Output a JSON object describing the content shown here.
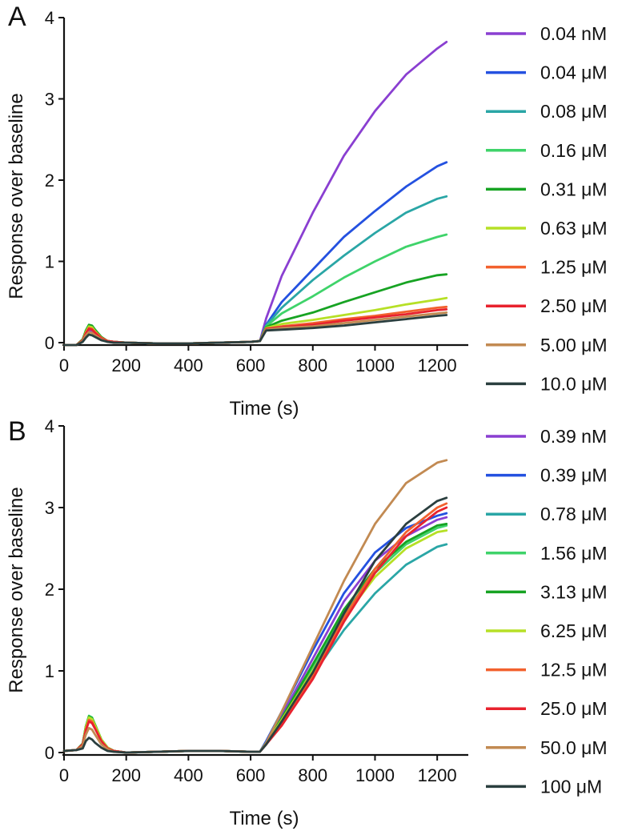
{
  "figure": {
    "panels": [
      {
        "label": "A",
        "xlabel": "Time (s)",
        "ylabel": "Response over baseline",
        "xticks": [
          "0",
          "200",
          "400",
          "600",
          "800",
          "1000",
          "1200"
        ],
        "yticks": [
          "0",
          "1",
          "2",
          "3",
          "4"
        ]
      },
      {
        "label": "B",
        "xlabel": "Time (s)",
        "ylabel": "Response over baseline",
        "xticks": [
          "0",
          "200",
          "400",
          "600",
          "800",
          "1000",
          "1200"
        ],
        "yticks": [
          "0",
          "1",
          "2",
          "3",
          "4"
        ]
      }
    ]
  },
  "chart_data": [
    {
      "type": "line",
      "panel": "A",
      "title": "",
      "xlabel": "Time (s)",
      "ylabel": "Response over baseline",
      "xlim": [
        0,
        1300
      ],
      "ylim": [
        0,
        4
      ],
      "xticks": [
        0,
        200,
        400,
        600,
        800,
        1000,
        1200
      ],
      "yticks": [
        0,
        1,
        2,
        3,
        4
      ],
      "grid": false,
      "legend_position": "right",
      "x": [
        0,
        40,
        60,
        70,
        80,
        90,
        100,
        120,
        140,
        160,
        200,
        300,
        400,
        500,
        600,
        630,
        650,
        700,
        800,
        900,
        1000,
        1100,
        1200,
        1230
      ],
      "series": [
        {
          "name": "0.04 nM",
          "color": "#8a3fd1",
          "values": [
            -0.03,
            -0.03,
            0.02,
            0.1,
            0.15,
            0.14,
            0.11,
            0.05,
            0.02,
            0.01,
            0.0,
            -0.01,
            -0.01,
            0.0,
            0.01,
            0.02,
            0.3,
            0.82,
            1.6,
            2.3,
            2.85,
            3.3,
            3.62,
            3.7
          ]
        },
        {
          "name": "0.04 μM",
          "color": "#2451e0",
          "values": [
            -0.03,
            -0.03,
            0.03,
            0.12,
            0.18,
            0.17,
            0.13,
            0.06,
            0.02,
            0.01,
            0.0,
            -0.01,
            -0.01,
            0.0,
            0.01,
            0.02,
            0.22,
            0.5,
            0.9,
            1.3,
            1.62,
            1.92,
            2.17,
            2.22
          ]
        },
        {
          "name": "0.08 μM",
          "color": "#2aa6a6",
          "values": [
            -0.03,
            -0.03,
            0.03,
            0.13,
            0.19,
            0.18,
            0.14,
            0.06,
            0.02,
            0.01,
            0.0,
            -0.01,
            -0.01,
            0.0,
            0.01,
            0.02,
            0.21,
            0.43,
            0.77,
            1.07,
            1.35,
            1.6,
            1.77,
            1.8
          ]
        },
        {
          "name": "0.16 μM",
          "color": "#3fd36a",
          "values": [
            -0.03,
            -0.03,
            0.04,
            0.14,
            0.21,
            0.2,
            0.15,
            0.07,
            0.02,
            0.01,
            0.0,
            -0.01,
            -0.01,
            0.0,
            0.01,
            0.02,
            0.2,
            0.36,
            0.57,
            0.8,
            1.0,
            1.18,
            1.3,
            1.33
          ]
        },
        {
          "name": "0.31 μM",
          "color": "#17a323",
          "values": [
            -0.03,
            -0.03,
            0.04,
            0.15,
            0.22,
            0.21,
            0.16,
            0.07,
            0.02,
            0.01,
            0.0,
            -0.01,
            -0.01,
            0.0,
            0.01,
            0.02,
            0.19,
            0.27,
            0.37,
            0.5,
            0.62,
            0.74,
            0.83,
            0.84
          ]
        },
        {
          "name": "0.63 μM",
          "color": "#b6e026",
          "values": [
            -0.03,
            -0.03,
            0.03,
            0.13,
            0.2,
            0.19,
            0.14,
            0.06,
            0.02,
            0.01,
            0.0,
            -0.01,
            -0.01,
            0.0,
            0.01,
            0.02,
            0.18,
            0.23,
            0.28,
            0.34,
            0.4,
            0.47,
            0.53,
            0.55
          ]
        },
        {
          "name": "1.25 μM",
          "color": "#f2612e",
          "values": [
            -0.03,
            -0.03,
            0.03,
            0.12,
            0.18,
            0.17,
            0.13,
            0.06,
            0.02,
            0.01,
            0.0,
            -0.01,
            -0.01,
            0.0,
            0.01,
            0.02,
            0.17,
            0.2,
            0.24,
            0.29,
            0.33,
            0.38,
            0.43,
            0.44
          ]
        },
        {
          "name": "2.50 μM",
          "color": "#e8222e",
          "values": [
            -0.03,
            -0.03,
            0.03,
            0.11,
            0.17,
            0.16,
            0.12,
            0.05,
            0.02,
            0.01,
            0.0,
            -0.01,
            -0.01,
            0.0,
            0.01,
            0.02,
            0.17,
            0.19,
            0.22,
            0.27,
            0.31,
            0.35,
            0.4,
            0.41
          ]
        },
        {
          "name": "5.00 μM",
          "color": "#c28a52",
          "values": [
            -0.03,
            -0.03,
            0.02,
            0.09,
            0.13,
            0.12,
            0.09,
            0.04,
            0.01,
            0.0,
            0.0,
            -0.01,
            -0.01,
            0.0,
            0.01,
            0.02,
            0.16,
            0.18,
            0.2,
            0.24,
            0.28,
            0.32,
            0.36,
            0.37
          ]
        },
        {
          "name": "10.0 μM",
          "color": "#2b3f3f",
          "values": [
            -0.03,
            -0.03,
            0.01,
            0.06,
            0.1,
            0.09,
            0.07,
            0.03,
            0.01,
            0.0,
            0.0,
            -0.01,
            -0.01,
            0.0,
            0.01,
            0.02,
            0.15,
            0.16,
            0.18,
            0.21,
            0.25,
            0.29,
            0.33,
            0.34
          ]
        }
      ]
    },
    {
      "type": "line",
      "panel": "B",
      "title": "",
      "xlabel": "Time (s)",
      "ylabel": "Response over baseline",
      "xlim": [
        0,
        1300
      ],
      "ylim": [
        0,
        4
      ],
      "xticks": [
        0,
        200,
        400,
        600,
        800,
        1000,
        1200
      ],
      "yticks": [
        0,
        1,
        2,
        3,
        4
      ],
      "grid": false,
      "legend_position": "right",
      "x": [
        0,
        40,
        60,
        70,
        80,
        90,
        100,
        120,
        140,
        160,
        200,
        300,
        400,
        500,
        600,
        630,
        650,
        700,
        800,
        900,
        1000,
        1100,
        1200,
        1230
      ],
      "series": [
        {
          "name": "0.39 nM",
          "color": "#8a3fd1",
          "values": [
            0.02,
            0.03,
            0.1,
            0.3,
            0.42,
            0.4,
            0.32,
            0.15,
            0.06,
            0.02,
            0.0,
            0.01,
            0.02,
            0.02,
            0.01,
            0.01,
            0.12,
            0.45,
            1.15,
            1.85,
            2.35,
            2.65,
            2.85,
            2.88
          ]
        },
        {
          "name": "0.39 μM",
          "color": "#2451e0",
          "values": [
            0.02,
            0.03,
            0.1,
            0.3,
            0.42,
            0.4,
            0.32,
            0.15,
            0.06,
            0.02,
            0.0,
            0.01,
            0.02,
            0.02,
            0.01,
            0.01,
            0.14,
            0.5,
            1.25,
            1.95,
            2.45,
            2.75,
            2.9,
            2.93
          ]
        },
        {
          "name": "0.78 μM",
          "color": "#2aa6a6",
          "values": [
            0.02,
            0.03,
            0.1,
            0.3,
            0.43,
            0.41,
            0.33,
            0.16,
            0.06,
            0.02,
            0.0,
            0.01,
            0.02,
            0.02,
            0.01,
            0.01,
            0.1,
            0.38,
            0.95,
            1.5,
            1.95,
            2.3,
            2.52,
            2.55
          ]
        },
        {
          "name": "1.56 μM",
          "color": "#3fd36a",
          "values": [
            0.02,
            0.03,
            0.11,
            0.32,
            0.45,
            0.43,
            0.34,
            0.16,
            0.06,
            0.02,
            0.0,
            0.01,
            0.02,
            0.02,
            0.01,
            0.01,
            0.12,
            0.42,
            1.05,
            1.7,
            2.2,
            2.55,
            2.75,
            2.78
          ]
        },
        {
          "name": "3.13 μM",
          "color": "#17a323",
          "values": [
            0.02,
            0.03,
            0.11,
            0.32,
            0.44,
            0.42,
            0.34,
            0.16,
            0.06,
            0.02,
            0.0,
            0.01,
            0.02,
            0.02,
            0.01,
            0.01,
            0.12,
            0.42,
            1.08,
            1.75,
            2.25,
            2.58,
            2.78,
            2.8
          ]
        },
        {
          "name": "6.25 μM",
          "color": "#b6e026",
          "values": [
            0.02,
            0.03,
            0.1,
            0.31,
            0.43,
            0.41,
            0.33,
            0.16,
            0.06,
            0.02,
            0.0,
            0.01,
            0.02,
            0.02,
            0.01,
            0.01,
            0.11,
            0.4,
            1.0,
            1.65,
            2.15,
            2.5,
            2.7,
            2.72
          ]
        },
        {
          "name": "12.5 μM",
          "color": "#f2612e",
          "values": [
            0.02,
            0.03,
            0.1,
            0.28,
            0.4,
            0.38,
            0.3,
            0.14,
            0.05,
            0.02,
            0.0,
            0.01,
            0.02,
            0.02,
            0.01,
            0.01,
            0.1,
            0.35,
            0.95,
            1.65,
            2.25,
            2.7,
            3.0,
            3.05
          ]
        },
        {
          "name": "25.0 μM",
          "color": "#e8222e",
          "values": [
            0.02,
            0.03,
            0.1,
            0.27,
            0.38,
            0.36,
            0.29,
            0.14,
            0.05,
            0.02,
            0.0,
            0.01,
            0.02,
            0.02,
            0.01,
            0.01,
            0.1,
            0.33,
            0.9,
            1.6,
            2.2,
            2.65,
            2.95,
            3.0
          ]
        },
        {
          "name": "50.0 μM",
          "color": "#c28a52",
          "values": [
            0.02,
            0.03,
            0.08,
            0.22,
            0.3,
            0.28,
            0.22,
            0.1,
            0.04,
            0.01,
            0.0,
            0.01,
            0.02,
            0.02,
            0.01,
            0.01,
            0.12,
            0.5,
            1.3,
            2.1,
            2.8,
            3.3,
            3.55,
            3.58
          ]
        },
        {
          "name": "100 μM",
          "color": "#2b3f3f",
          "values": [
            0.02,
            0.03,
            0.05,
            0.14,
            0.18,
            0.16,
            0.12,
            0.06,
            0.02,
            0.01,
            0.0,
            0.01,
            0.02,
            0.02,
            0.01,
            0.01,
            0.1,
            0.38,
            0.98,
            1.7,
            2.35,
            2.8,
            3.08,
            3.12
          ]
        }
      ]
    }
  ]
}
